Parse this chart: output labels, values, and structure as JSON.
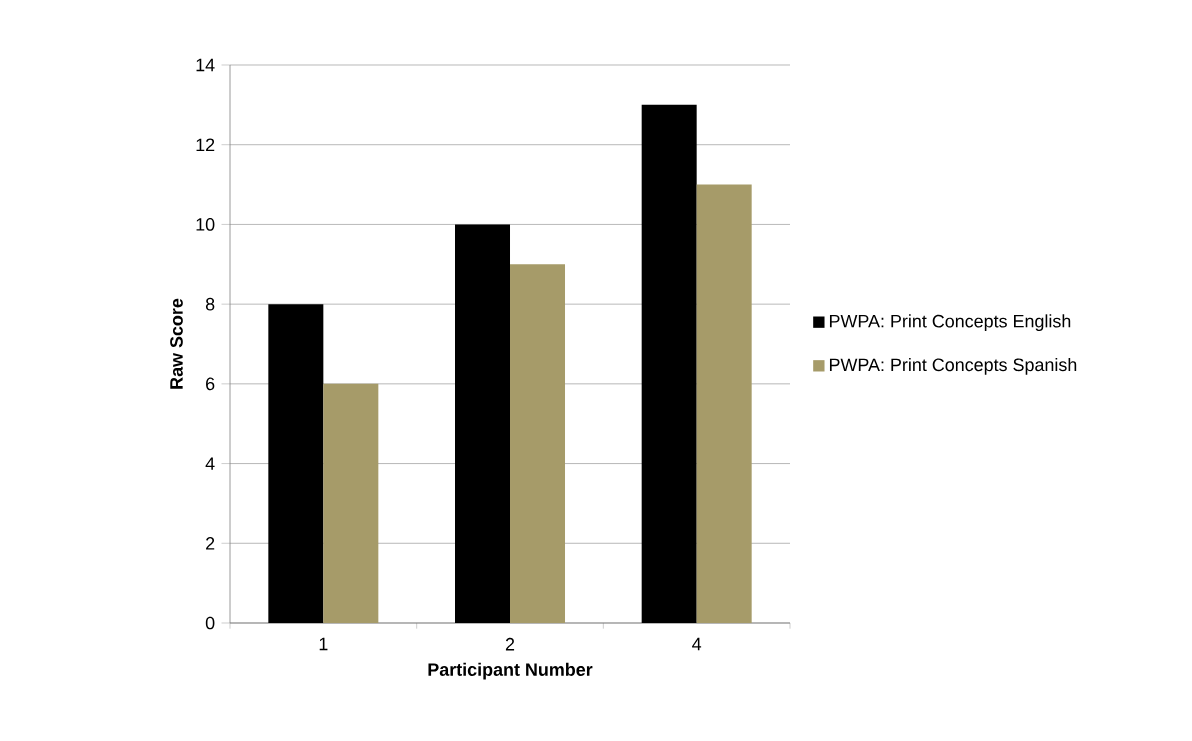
{
  "chart_data": {
    "type": "bar",
    "xlabel": "Participant Number",
    "ylabel": "Raw Score",
    "categories": [
      "1",
      "2",
      "4"
    ],
    "series": [
      {
        "name": "PWPA: Print Concepts English",
        "color": "#000000",
        "values": [
          8,
          10,
          13
        ]
      },
      {
        "name": "PWPA: Print Concepts Spanish",
        "color": "#a69b69",
        "values": [
          6,
          9,
          11
        ]
      }
    ],
    "ylim": [
      0,
      14
    ],
    "yticks": [
      0,
      2,
      4,
      6,
      8,
      10,
      12,
      14
    ],
    "grid": "y",
    "legend": "right"
  }
}
